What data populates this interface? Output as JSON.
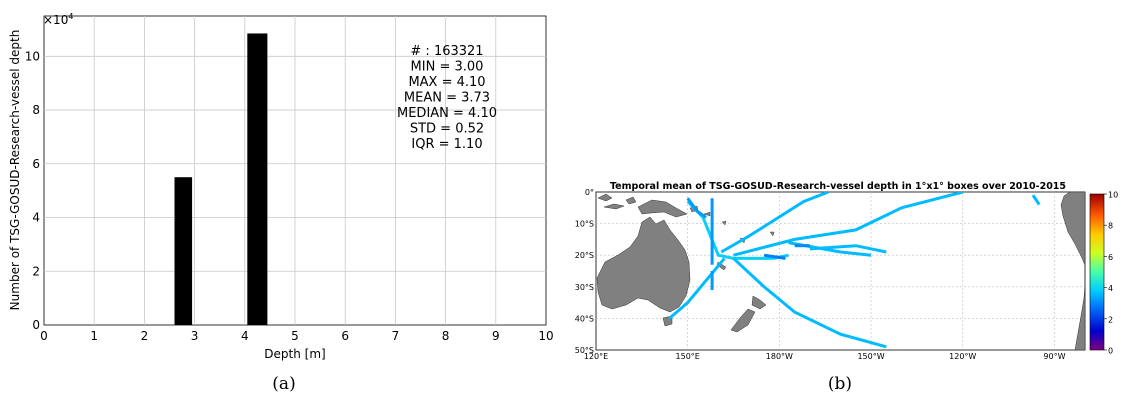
{
  "chart_data": [
    {
      "type": "bar",
      "exponent_label": "×10",
      "exponent_sup": "4",
      "xlabel": "Depth [m]",
      "ylabel": "Number of TSG-GOSUD-Research-vessel depth",
      "xlim": [
        0,
        10
      ],
      "ylim": [
        0,
        11.5
      ],
      "xticks": [
        "0",
        "1",
        "2",
        "3",
        "4",
        "5",
        "6",
        "7",
        "8",
        "9",
        "10"
      ],
      "yticks": [
        "0",
        "2",
        "4",
        "6",
        "8",
        "10"
      ],
      "grid": true,
      "bars": [
        {
          "x0": 2.6,
          "x1": 2.95,
          "value": 5.5
        },
        {
          "x0": 4.05,
          "x1": 4.45,
          "value": 10.85
        }
      ],
      "stats": [
        "# : 163321",
        "MIN = 3.00",
        "MAX =  4.10",
        "MEAN = 3.73",
        "MEDIAN = 4.10",
        "STD = 0.52",
        "IQR = 1.10"
      ],
      "caption": "(a)"
    },
    {
      "type": "heatmap",
      "title": "Temporal mean of TSG-GOSUD-Research-vessel depth in 1°x1° boxes over 2010-2015",
      "lon_range": [
        120,
        280
      ],
      "lat_range": [
        0,
        -50
      ],
      "lon_ticks": [
        "120°E",
        "150°E",
        "180°W",
        "150°W",
        "120°W",
        "90°W"
      ],
      "lat_ticks": [
        "0°",
        "10°S",
        "20°S",
        "30°S",
        "40°S",
        "50°S"
      ],
      "colorbar": {
        "ticks": [
          "10",
          "8",
          "6",
          "4",
          "2",
          "0"
        ],
        "range": [
          0,
          10
        ]
      },
      "tracks": [
        {
          "value": 3.9,
          "points": [
            [
              150,
              -3
            ],
            [
              155,
              -8
            ],
            [
              160,
              -20
            ],
            [
              165,
              -21
            ],
            [
              178,
              -21
            ],
            [
              183,
              -20
            ]
          ]
        },
        {
          "value": 3.6,
          "points": [
            [
              161,
              -19
            ],
            [
              170,
              -14
            ],
            [
              188,
              -3
            ],
            [
              196,
              0
            ]
          ]
        },
        {
          "value": 3.6,
          "points": [
            [
              165,
              -20
            ],
            [
              185,
              -15
            ],
            [
              205,
              -12
            ],
            [
              220,
              -5
            ],
            [
              240,
              0
            ]
          ]
        },
        {
          "value": 3.6,
          "points": [
            [
              190,
              -18
            ],
            [
              205,
              -17
            ],
            [
              215,
              -19
            ]
          ]
        },
        {
          "value": 3.6,
          "points": [
            [
              162,
              -21
            ],
            [
              150,
              -35
            ],
            [
              144,
              -40
            ]
          ]
        },
        {
          "value": 3.6,
          "points": [
            [
              165,
              -21
            ],
            [
              175,
              -30
            ],
            [
              185,
              -38
            ],
            [
              200,
              -45
            ],
            [
              215,
              -49
            ]
          ]
        },
        {
          "value": 3.6,
          "points": [
            [
              183,
              -16
            ],
            [
              200,
              -19
            ],
            [
              210,
              -20
            ]
          ]
        },
        {
          "value": 3.6,
          "points": [
            [
              263,
              -1
            ],
            [
              265,
              -4
            ]
          ]
        },
        {
          "value": 3.2,
          "points": [
            [
              158,
              -2
            ],
            [
              158,
              -23
            ]
          ]
        },
        {
          "value": 3.2,
          "points": [
            [
              150,
              -2
            ],
            [
              153,
              -6
            ],
            [
              156,
              -8
            ]
          ]
        },
        {
          "value": 3.2,
          "points": [
            [
              158,
              -25
            ],
            [
              158,
              -31
            ]
          ]
        },
        {
          "value": 2.9,
          "points": [
            [
              175,
              -20
            ],
            [
              182,
              -21
            ]
          ]
        },
        {
          "value": 3.0,
          "points": [
            [
              185,
              -17
            ],
            [
              190,
              -17
            ]
          ]
        }
      ],
      "caption": "(b)"
    }
  ]
}
